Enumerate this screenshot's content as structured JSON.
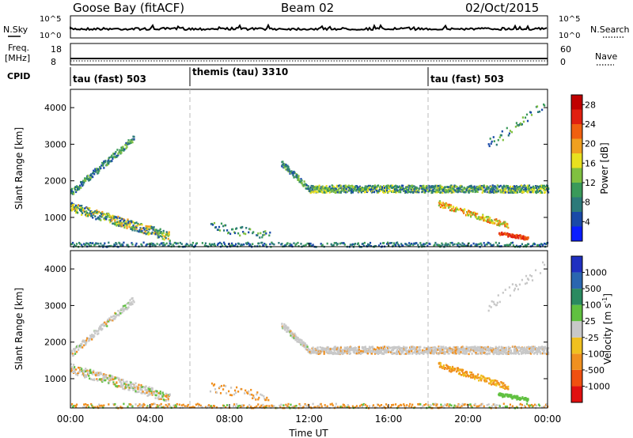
{
  "header": {
    "station": "Goose Bay (fitACF)",
    "beam": "Beam 02",
    "date": "02/Oct/2015"
  },
  "top_panels": {
    "nsky_label": "N.Sky",
    "nsearch_label": "N.Search",
    "noise_ticks_left": [
      "10^5",
      "10^0"
    ],
    "noise_ticks_right": [
      "10^5",
      "10^0"
    ],
    "freq_label": [
      "Freq.",
      "[MHz]"
    ],
    "freq_ticks": [
      "18",
      "8"
    ],
    "nave_label": "Nave",
    "nave_ticks": [
      "60",
      "0"
    ],
    "cpid_label": "CPID",
    "cpid_segments": [
      {
        "label": "tau (fast) 503",
        "start_hour": 0
      },
      {
        "label": "themis (tau) 3310",
        "start_hour": 6
      },
      {
        "label": "tau (fast) 503",
        "start_hour": 18
      }
    ]
  },
  "chart_data": [
    {
      "type": "heatmap",
      "name": "power",
      "ylabel": "Slant Range [km]",
      "y_ticks": [
        "1000",
        "2000",
        "3000",
        "4000"
      ],
      "ylim": [
        200,
        4500
      ],
      "xlim_hours": [
        0,
        24
      ],
      "colorbar": {
        "label": "Power [dB]",
        "ticks": [
          "4",
          "8",
          "12",
          "16",
          "20",
          "24",
          "28"
        ],
        "range": [
          0,
          30
        ],
        "colors": [
          "#0a1eff",
          "#1a4aa8",
          "#2c7a7a",
          "#3a9a5a",
          "#80c040",
          "#e8e020",
          "#f0a020",
          "#f06010",
          "#e02010",
          "#c00000"
        ]
      }
    },
    {
      "type": "heatmap",
      "name": "velocity",
      "ylabel": "Slant Range [km]",
      "y_ticks": [
        "1000",
        "2000",
        "3000",
        "4000"
      ],
      "ylim": [
        200,
        4500
      ],
      "xlim_hours": [
        0,
        24
      ],
      "colorbar": {
        "label": "Velocity [m s",
        "label_superscript": "-1",
        "label_close": "]",
        "ticks": [
          "1000",
          "500",
          "100",
          "25",
          "-25",
          "-100",
          "-500",
          "-1000"
        ],
        "colors": [
          "#2030c0",
          "#2a66b0",
          "#2a8a60",
          "#60c040",
          "#c8c8c8",
          "#f0c020",
          "#f09020",
          "#f05010",
          "#e01010"
        ]
      },
      "xlabel": "Time UT",
      "x_ticks": [
        "00:00",
        "04:00",
        "08:00",
        "12:00",
        "16:00",
        "20:00",
        "00:00"
      ]
    }
  ]
}
